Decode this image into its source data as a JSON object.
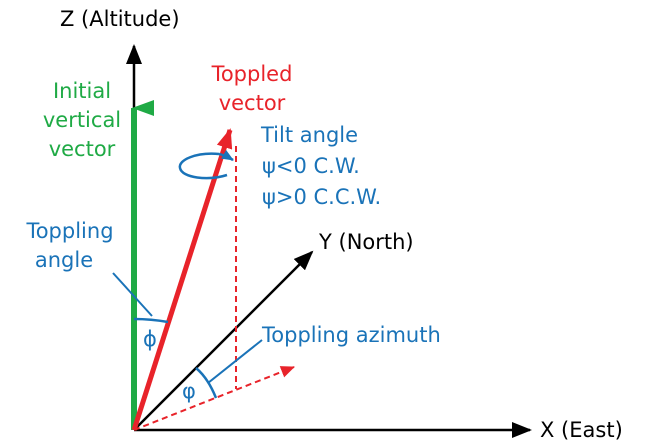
{
  "labels": {
    "z_axis": "Z (Altitude)",
    "x_axis": "X (East)",
    "y_axis": "Y (North)",
    "initial_vector": [
      "Initial",
      "vertical",
      "vector"
    ],
    "toppled_vector": [
      "Toppled",
      "vector"
    ],
    "tilt_angle": [
      "Tilt angle",
      "ψ<0 C.W.",
      "ψ>0 C.C.W."
    ],
    "toppling_angle": [
      "Toppling",
      "angle"
    ],
    "toppling_azimuth": "Toppling azimuth",
    "phi_symbol": "ϕ",
    "varphi_symbol": "φ"
  },
  "colors": {
    "axes": "#000000",
    "initial_vector": "#1faa45",
    "toppled_vector": "#e8232a",
    "annotation": "#1a73b8"
  }
}
